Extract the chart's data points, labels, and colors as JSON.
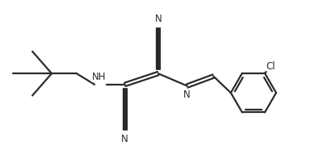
{
  "bg_color": "#ffffff",
  "line_color": "#2a2a2a",
  "line_width": 1.6,
  "font_size": 8.5,
  "figsize": [
    3.95,
    1.96
  ],
  "dpi": 100,
  "xlim": [
    -1.0,
    10.5
  ],
  "ylim": [
    0.5,
    5.5
  ]
}
